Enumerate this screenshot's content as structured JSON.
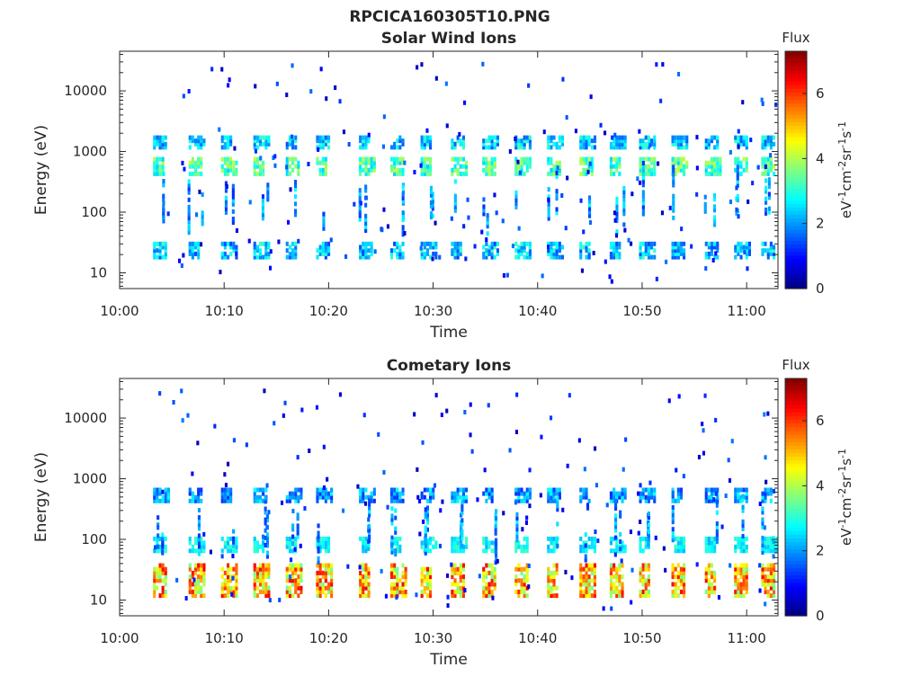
{
  "figure_title": "RPCICA160305T10.PNG",
  "chart_data": [
    {
      "type": "heatmap",
      "title": "Solar Wind Ions",
      "xlabel": "Time",
      "ylabel": "Energy (eV)",
      "x_ticks": [
        "10:00",
        "10:10",
        "10:20",
        "10:30",
        "10:40",
        "10:50",
        "11:00"
      ],
      "x_range_minutes": [
        0,
        63
      ],
      "y_scale": "log",
      "y_ticks": [
        "10",
        "100",
        "1000",
        "10000"
      ],
      "y_range": [
        5.5,
        45000
      ],
      "colorbar": {
        "title": "Flux",
        "label": "eV-1cm-2sr-1s-1",
        "ticks": [
          "0",
          "2",
          "4",
          "6"
        ],
        "range": [
          0,
          7.3
        ],
        "colormap": "jet"
      },
      "grid": false,
      "bands": [
        {
          "energy_low": 17,
          "energy_high": 32,
          "flux_min": 1.4,
          "flux_max": 3.2
        },
        {
          "energy_low": 400,
          "energy_high": 800,
          "flux_min": 2.4,
          "flux_max": 4.1
        },
        {
          "energy_low": 1100,
          "energy_high": 1800,
          "flux_min": 1.5,
          "flux_max": 3.2
        }
      ],
      "pulse_minutes": [
        3.8,
        7.2,
        10.3,
        13.4,
        16.5,
        19.4,
        23.5,
        26.5,
        29.4,
        32.3,
        35.3,
        38.4,
        41.5,
        44.6,
        47.5,
        50.3,
        53.4,
        56.6,
        59.4,
        62.0
      ]
    },
    {
      "type": "heatmap",
      "title": "Cometary Ions",
      "xlabel": "Time",
      "ylabel": "Energy (eV)",
      "x_ticks": [
        "10:00",
        "10:10",
        "10:20",
        "10:30",
        "10:40",
        "10:50",
        "11:00"
      ],
      "x_range_minutes": [
        0,
        63
      ],
      "y_scale": "log",
      "y_ticks": [
        "10",
        "100",
        "1000",
        "10000"
      ],
      "y_range": [
        5.5,
        45000
      ],
      "colorbar": {
        "title": "Flux",
        "label": "eV-1cm-2sr-1s-1",
        "ticks": [
          "0",
          "2",
          "4",
          "6"
        ],
        "range": [
          0,
          7.3
        ],
        "colormap": "jet"
      },
      "grid": false,
      "bands": [
        {
          "energy_low": 11,
          "energy_high": 40,
          "flux_min": 3.5,
          "flux_max": 6.5
        },
        {
          "energy_low": 60,
          "energy_high": 110,
          "flux_min": 2.2,
          "flux_max": 3.2
        },
        {
          "energy_low": 400,
          "energy_high": 700,
          "flux_min": 1.2,
          "flux_max": 2.8
        }
      ],
      "pulse_minutes": [
        3.8,
        7.2,
        10.3,
        13.4,
        16.5,
        19.4,
        23.5,
        26.5,
        29.4,
        32.3,
        35.3,
        38.4,
        41.5,
        44.6,
        47.5,
        50.3,
        53.4,
        56.6,
        59.4,
        62.0
      ]
    }
  ]
}
